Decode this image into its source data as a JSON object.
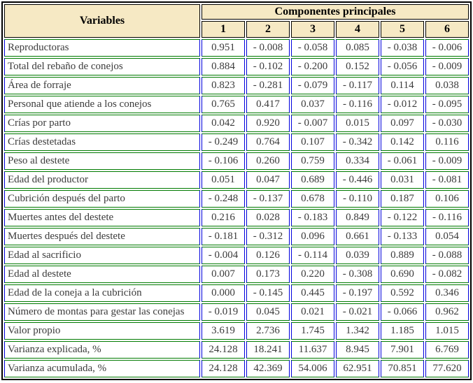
{
  "table": {
    "header": {
      "variables_label": "Variables",
      "components_label": "Componentes principales",
      "component_numbers": [
        "1",
        "2",
        "3",
        "4",
        "5",
        "6"
      ]
    },
    "rows": [
      {
        "label": "Reproductoras",
        "values": [
          "0.951",
          "- 0.008",
          "- 0.058",
          "0.085",
          "- 0.038",
          "- 0.006"
        ]
      },
      {
        "label": "Total del rebaño de conejos",
        "values": [
          "0.884",
          "- 0.102",
          "- 0.200",
          "0.152",
          "- 0.056",
          "- 0.009"
        ]
      },
      {
        "label": "Área de forraje",
        "values": [
          "0.823",
          "- 0.281",
          "- 0.079",
          "- 0.117",
          "0.114",
          "0.038"
        ]
      },
      {
        "label": "Personal que atiende a los conejos",
        "values": [
          "0.765",
          "0.417",
          "0.037",
          "- 0.116",
          "- 0.012",
          "- 0.095"
        ]
      },
      {
        "label": "Crías por parto",
        "values": [
          "0.042",
          "0.920",
          "- 0.007",
          "0.015",
          "0.097",
          "- 0.030"
        ]
      },
      {
        "label": "Crías destetadas",
        "values": [
          "- 0.249",
          "0.764",
          "0.107",
          "- 0.342",
          "0.142",
          "0.116"
        ]
      },
      {
        "label": "Peso al destete",
        "values": [
          "- 0.106",
          "0.260",
          "0.759",
          "0.334",
          "- 0.061",
          "- 0.009"
        ]
      },
      {
        "label": "Edad del productor",
        "values": [
          "0.051",
          "0.047",
          "0.689",
          "- 0.446",
          "0.031",
          "- 0.081"
        ]
      },
      {
        "label": "Cubrición después del parto",
        "values": [
          "- 0.248",
          "- 0.137",
          "0.678",
          "- 0.110",
          "0.187",
          "0.106"
        ]
      },
      {
        "label": "Muertes antes del destete",
        "values": [
          "0.216",
          "0.028",
          "- 0.183",
          "0.849",
          "- 0.122",
          "- 0.116"
        ]
      },
      {
        "label": "Muertes después del destete",
        "values": [
          "- 0.181",
          "- 0.312",
          "0.096",
          "0.661",
          "- 0.133",
          "0.054"
        ]
      },
      {
        "label": "Edad al sacrificio",
        "values": [
          "- 0.004",
          "0.126",
          "- 0.114",
          "0.039",
          "0.889",
          "- 0.088"
        ]
      },
      {
        "label": "Edad al destete",
        "values": [
          "0.007",
          "0.173",
          "0.220",
          "- 0.308",
          "0.690",
          "- 0.082"
        ]
      },
      {
        "label": "Edad de la coneja a la cubrición",
        "values": [
          "0.000",
          "- 0.145",
          "0.445",
          "- 0.197",
          "0.592",
          "0.346"
        ]
      },
      {
        "label": "Número de montas para gestar las conejas",
        "values": [
          "- 0.019",
          "0.045",
          "0.021",
          "- 0.021",
          "- 0.066",
          "0.962"
        ]
      },
      {
        "label": "Valor propio",
        "values": [
          "3.619",
          "2.736",
          "1.745",
          "1.342",
          "1.185",
          "1.015"
        ]
      },
      {
        "label": "Varianza explicada, %",
        "values": [
          "24.128",
          "18.241",
          "11.637",
          "8.945",
          "7.901",
          "6.769"
        ]
      },
      {
        "label": "Varianza acumulada, %",
        "values": [
          "24.128",
          "42.369",
          "54.006",
          "62.951",
          "70.851",
          "77.620"
        ]
      }
    ],
    "colors": {
      "header_background": "#F6E9C4",
      "outer_border": "#000000",
      "vertical_rule": "#0000DD",
      "horizontal_rule": "#007A00",
      "data_text": "#3b3b3b"
    }
  }
}
